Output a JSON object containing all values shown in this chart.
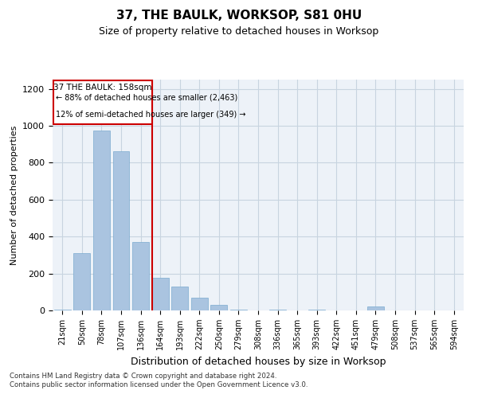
{
  "title": "37, THE BAULK, WORKSOP, S81 0HU",
  "subtitle": "Size of property relative to detached houses in Worksop",
  "xlabel": "Distribution of detached houses by size in Worksop",
  "ylabel": "Number of detached properties",
  "footnote": "Contains HM Land Registry data © Crown copyright and database right 2024.\nContains public sector information licensed under the Open Government Licence v3.0.",
  "bar_labels": [
    "21sqm",
    "50sqm",
    "78sqm",
    "107sqm",
    "136sqm",
    "164sqm",
    "193sqm",
    "222sqm",
    "250sqm",
    "279sqm",
    "308sqm",
    "336sqm",
    "365sqm",
    "393sqm",
    "422sqm",
    "451sqm",
    "479sqm",
    "508sqm",
    "537sqm",
    "565sqm",
    "594sqm"
  ],
  "bar_values": [
    5,
    310,
    975,
    860,
    370,
    175,
    130,
    70,
    30,
    5,
    0,
    5,
    0,
    5,
    0,
    0,
    20,
    0,
    0,
    0,
    0
  ],
  "bar_color": "#aac4e0",
  "bar_edge_color": "#7aaacf",
  "highlight_index": 5,
  "highlight_line_color": "#cc0000",
  "ylim": [
    0,
    1250
  ],
  "yticks": [
    0,
    200,
    400,
    600,
    800,
    1000,
    1200
  ],
  "annotation_title": "37 THE BAULK: 158sqm",
  "annotation_line1": "← 88% of detached houses are smaller (2,463)",
  "annotation_line2": "12% of semi-detached houses are larger (349) →",
  "bg_color": "#edf2f8",
  "grid_color": "#c8d4e0",
  "title_fontsize": 11,
  "subtitle_fontsize": 9,
  "tick_fontsize": 7,
  "ylabel_fontsize": 8,
  "xlabel_fontsize": 9
}
